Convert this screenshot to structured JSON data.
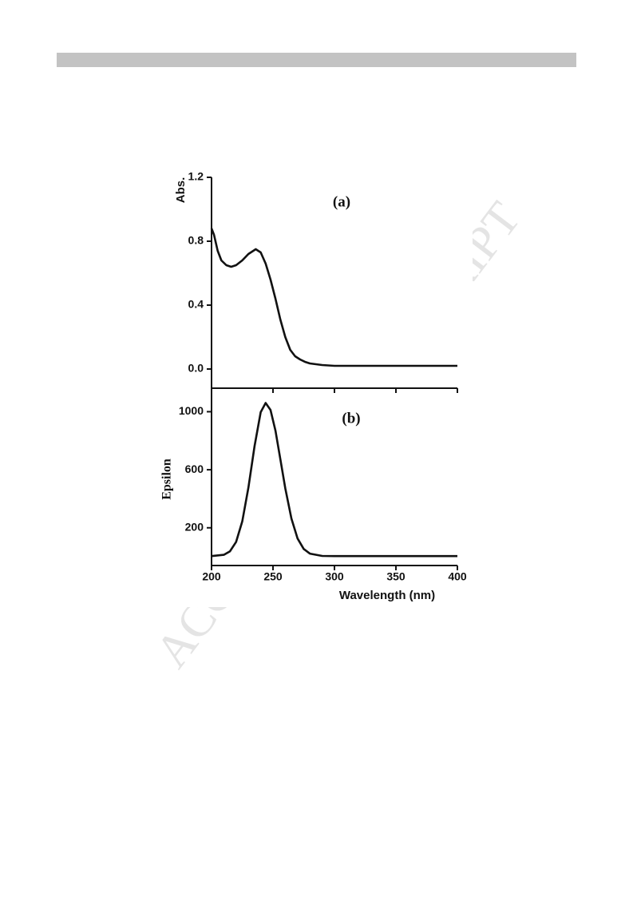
{
  "watermark": "ACCEPTED MANUSCRIPT",
  "chart_data": [
    {
      "type": "line",
      "title": "(a)",
      "y_label": "Abs.",
      "x": [
        200,
        202,
        205,
        208,
        212,
        216,
        220,
        225,
        230,
        236,
        240,
        244,
        248,
        252,
        256,
        260,
        264,
        268,
        272,
        276,
        280,
        290,
        300,
        320,
        350,
        400
      ],
      "series": [
        {
          "name": "Abs.",
          "color": "#111111",
          "values": [
            0.88,
            0.84,
            0.74,
            0.68,
            0.65,
            0.64,
            0.65,
            0.68,
            0.72,
            0.75,
            0.73,
            0.66,
            0.56,
            0.44,
            0.31,
            0.2,
            0.12,
            0.08,
            0.06,
            0.045,
            0.035,
            0.025,
            0.02,
            0.02,
            0.02,
            0.02
          ]
        }
      ],
      "xlim": [
        200,
        400
      ],
      "xticks": [
        200,
        250,
        300,
        350,
        400
      ],
      "ylim": [
        -0.12,
        1.2
      ],
      "yticks": [
        {
          "value": 0,
          "label": "0.0"
        },
        0.4,
        0.8,
        1.2
      ]
    },
    {
      "type": "line",
      "title": "(b)",
      "y_label": "Epsilon",
      "x_label": "Wavelength (nm)",
      "x": [
        200,
        210,
        215,
        220,
        225,
        230,
        235,
        240,
        244,
        248,
        252,
        256,
        260,
        265,
        270,
        275,
        280,
        290,
        300,
        350,
        400
      ],
      "series": [
        {
          "name": "Epsilon",
          "color": "#111111",
          "values": [
            5,
            14,
            38,
            103,
            244,
            477,
            763,
            997,
            1060,
            1012,
            869,
            673,
            472,
            263,
            126,
            54,
            22,
            6,
            5,
            5,
            5
          ]
        }
      ],
      "xlim": [
        200,
        400
      ],
      "xticks": [
        200,
        250,
        300,
        350,
        400
      ],
      "ylim": [
        -60,
        1140
      ],
      "yticks": [
        200,
        600,
        1000
      ]
    }
  ]
}
